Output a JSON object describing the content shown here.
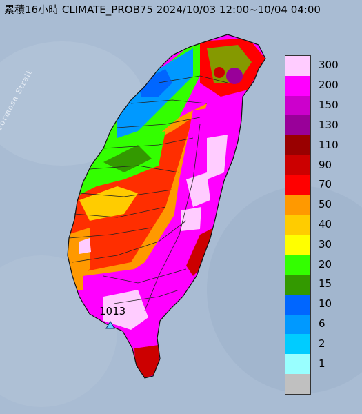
{
  "title": "累積16小時 CLIMATE_PROB75 2024/10/03 12:00~10/04 04:00",
  "strait_label": "Formosa Strait",
  "pressure_label": "1013",
  "legend": [
    {
      "label": "300",
      "color": "#ffccff"
    },
    {
      "label": "200",
      "color": "#ff00ff"
    },
    {
      "label": "150",
      "color": "#cc00cc"
    },
    {
      "label": "130",
      "color": "#990099"
    },
    {
      "label": "110",
      "color": "#990000"
    },
    {
      "label": "90",
      "color": "#cc0000"
    },
    {
      "label": "70",
      "color": "#ff0000"
    },
    {
      "label": "50",
      "color": "#ff9900"
    },
    {
      "label": "40",
      "color": "#ffcc00"
    },
    {
      "label": "30",
      "color": "#ffff00"
    },
    {
      "label": "20",
      "color": "#33ff00"
    },
    {
      "label": "15",
      "color": "#339900"
    },
    {
      "label": "10",
      "color": "#0066ff"
    },
    {
      "label": "6",
      "color": "#0099ff"
    },
    {
      "label": "2",
      "color": "#00ccff"
    },
    {
      "label": "1",
      "color": "#99ffff"
    },
    {
      "label": "",
      "color": "#c0c0c0"
    }
  ]
}
